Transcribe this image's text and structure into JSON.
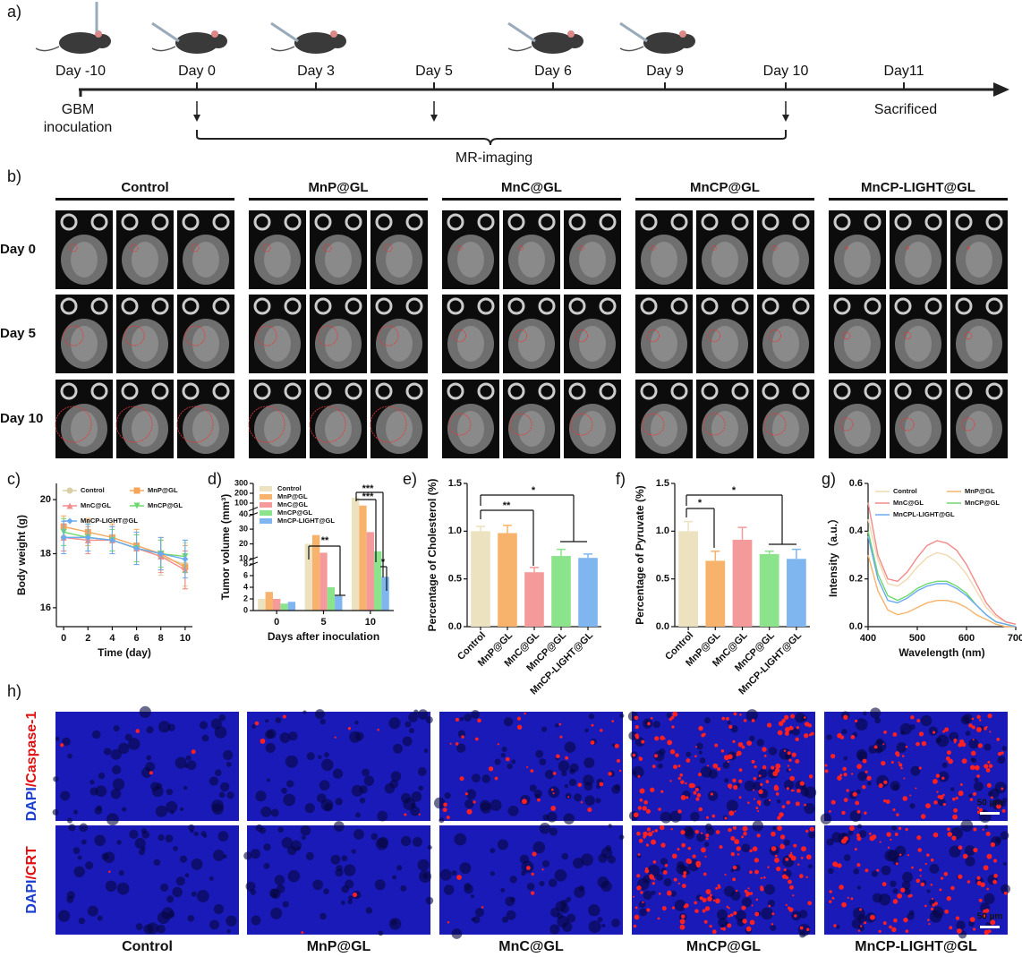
{
  "panel_a": {
    "label": "a)",
    "days": [
      "Day -10",
      "Day 0",
      "Day 3",
      "Day 5",
      "Day 6",
      "Day 9",
      "Day 10",
      "Day11"
    ],
    "gbm": [
      "GBM",
      "inoculation"
    ],
    "sacrificed": "Sacrificed",
    "imaging": "MR-imaging"
  },
  "panel_b": {
    "label": "b)",
    "groups": [
      "Control",
      "MnP@GL",
      "MnC@GL",
      "MnCP@GL",
      "MnCP-LIGHT@GL"
    ],
    "days": [
      "Day 0",
      "Day 5",
      "Day 10"
    ]
  },
  "panel_h": {
    "label": "h)",
    "rows": [
      {
        "stain": "DAPI",
        "marker": "/Caspase-1"
      },
      {
        "stain": "DAPI",
        "marker": "/CRT"
      }
    ],
    "scale": "50 µm",
    "groups": [
      "Control",
      "MnP@GL",
      "MnC@GL",
      "MnCP@GL",
      "MnCP-LIGHT@GL"
    ]
  },
  "chart_data": [
    {
      "label": "c)",
      "type": "line",
      "xlabel": "Time (day)",
      "ylabel": "Body weight (g)",
      "x": [
        0,
        2,
        4,
        6,
        8,
        10
      ],
      "xlim": [
        -0.6,
        10.6
      ],
      "xticks": [
        0,
        2,
        4,
        6,
        8,
        10
      ],
      "ylim": [
        15.3,
        20.6
      ],
      "yticks": [
        16,
        18,
        20
      ],
      "series": [
        {
          "name": "Control",
          "color": "#d9cfa6",
          "marker": "circle",
          "values": [
            18.6,
            18.6,
            18.5,
            18.2,
            17.9,
            17.6
          ],
          "errors": [
            0.5,
            0.6,
            0.5,
            0.6,
            0.7,
            0.8
          ]
        },
        {
          "name": "MnP@GL",
          "color": "#f5a55a",
          "marker": "square",
          "values": [
            19.0,
            18.8,
            18.6,
            18.3,
            18.0,
            17.5
          ],
          "errors": [
            0.4,
            0.5,
            0.5,
            0.6,
            0.6,
            0.8
          ]
        },
        {
          "name": "MnC@GL",
          "color": "#f28b8b",
          "marker": "triangle",
          "values": [
            18.6,
            18.5,
            18.5,
            18.2,
            17.9,
            17.4
          ],
          "errors": [
            0.5,
            0.5,
            0.5,
            0.5,
            0.6,
            0.7
          ]
        },
        {
          "name": "MnCP@GL",
          "color": "#6cd96c",
          "marker": "triangle-down",
          "values": [
            18.8,
            18.6,
            18.5,
            18.2,
            18.0,
            17.9
          ],
          "errors": [
            0.5,
            0.5,
            0.4,
            0.5,
            0.5,
            0.6
          ]
        },
        {
          "name": "MnCP-LIGHT@GL",
          "color": "#6aaaf0",
          "marker": "diamond",
          "values": [
            18.6,
            18.6,
            18.5,
            18.2,
            18.0,
            17.8
          ],
          "errors": [
            0.6,
            0.5,
            0.5,
            0.6,
            0.6,
            0.7
          ]
        }
      ]
    },
    {
      "label": "d)",
      "type": "grouped_bar",
      "xlabel": "Days after inoculation",
      "ylabel": "Tumor volume (mm³)",
      "categories": [
        "0",
        "5",
        "10"
      ],
      "ylim": [
        0,
        300
      ],
      "y_segments": [
        [
          0,
          8
        ],
        [
          10,
          40
        ],
        [
          40,
          300
        ]
      ],
      "yticks": [
        0,
        2,
        4,
        6,
        8,
        10,
        20,
        30,
        40,
        100,
        200,
        300
      ],
      "annotations": [
        "**",
        "***",
        "***",
        "*"
      ],
      "series": [
        {
          "name": "Control",
          "color": "#ece2c0",
          "values": [
            2.0,
            20,
            155
          ]
        },
        {
          "name": "MnP@GL",
          "color": "#f7b36b",
          "values": [
            3.2,
            26,
            75
          ]
        },
        {
          "name": "MnC@GL",
          "color": "#f49a9a",
          "values": [
            2.0,
            14,
            28
          ]
        },
        {
          "name": "MnCP@GL",
          "color": "#8be38b",
          "values": [
            1.2,
            4.0,
            15
          ]
        },
        {
          "name": "MnCP-LIGHT@GL",
          "color": "#7fb6f0",
          "values": [
            1.5,
            2.5,
            5.8
          ]
        }
      ]
    },
    {
      "label": "e)",
      "type": "bar",
      "ylabel": "Percentage of Cholesterol (%)",
      "categories": [
        "Control",
        "MnP@GL",
        "MnC@GL",
        "MnCP@GL",
        "MnCP-LIGHT@GL"
      ],
      "values": [
        1.0,
        0.98,
        0.57,
        0.74,
        0.72
      ],
      "errors": [
        0.05,
        0.08,
        0.05,
        0.07,
        0.04
      ],
      "colors": [
        "#ece2c0",
        "#f7b36b",
        "#f49a9a",
        "#8be38b",
        "#7fb6f0"
      ],
      "ylim": [
        0,
        1.5
      ],
      "yticks": [
        {
          "value": 0,
          "label": "0.0"
        },
        0.5,
        {
          "value": 1,
          "label": "1.0"
        },
        1.5
      ],
      "annotations": [
        "**",
        "*"
      ]
    },
    {
      "label": "f)",
      "type": "bar",
      "ylabel": "Percentage of Pyruvate (%)",
      "categories": [
        "Control",
        "MnP@GL",
        "MnC@GL",
        "MnCP@GL",
        "MnCP-LIGHT@GL"
      ],
      "values": [
        1.0,
        0.69,
        0.91,
        0.76,
        0.71
      ],
      "errors": [
        0.1,
        0.1,
        0.13,
        0.03,
        0.1
      ],
      "colors": [
        "#ece2c0",
        "#f7b36b",
        "#f49a9a",
        "#8be38b",
        "#7fb6f0"
      ],
      "ylim": [
        0,
        1.5
      ],
      "yticks": [
        {
          "value": 0,
          "label": "0.0"
        },
        0.5,
        {
          "value": 1,
          "label": "1.0"
        },
        1.5
      ],
      "annotations": [
        "*",
        "*"
      ]
    },
    {
      "label": "g)",
      "type": "line",
      "xlabel": "Wavelength (nm)",
      "ylabel": "Intensity（a.u.）",
      "x": [
        400,
        420,
        440,
        460,
        480,
        500,
        520,
        540,
        560,
        580,
        600,
        620,
        640,
        660,
        680,
        700
      ],
      "xlim": [
        400,
        700
      ],
      "xticks": [
        400,
        500,
        600,
        700
      ],
      "ylim": [
        0,
        0.6
      ],
      "yticks": [
        {
          "value": 0,
          "label": "0.0"
        },
        0.2,
        0.4,
        0.6
      ],
      "series": [
        {
          "name": "Control",
          "color": "#f0d9b0",
          "values": [
            0.45,
            0.28,
            0.18,
            0.17,
            0.2,
            0.25,
            0.29,
            0.31,
            0.3,
            0.27,
            0.22,
            0.15,
            0.08,
            0.04,
            0.02,
            0.01
          ]
        },
        {
          "name": "MnP@GL",
          "color": "#f7b36b",
          "values": [
            0.3,
            0.15,
            0.07,
            0.05,
            0.06,
            0.08,
            0.1,
            0.11,
            0.11,
            0.1,
            0.08,
            0.05,
            0.03,
            0.01,
            0,
            0
          ]
        },
        {
          "name": "MnC@GL",
          "color": "#f28b8b",
          "values": [
            0.52,
            0.3,
            0.2,
            0.19,
            0.23,
            0.29,
            0.34,
            0.36,
            0.35,
            0.32,
            0.26,
            0.18,
            0.1,
            0.05,
            0.02,
            0.01
          ]
        },
        {
          "name": "MnCP@GL",
          "color": "#6cd96c",
          "values": [
            0.4,
            0.22,
            0.13,
            0.11,
            0.13,
            0.16,
            0.18,
            0.19,
            0.19,
            0.17,
            0.14,
            0.09,
            0.05,
            0.02,
            0.01,
            0
          ]
        },
        {
          "name": "MnCPL-LIGHT@GL",
          "color": "#6aaaf0",
          "values": [
            0.38,
            0.2,
            0.11,
            0.1,
            0.12,
            0.15,
            0.17,
            0.18,
            0.18,
            0.16,
            0.13,
            0.09,
            0.05,
            0.02,
            0.01,
            0
          ]
        }
      ]
    }
  ]
}
